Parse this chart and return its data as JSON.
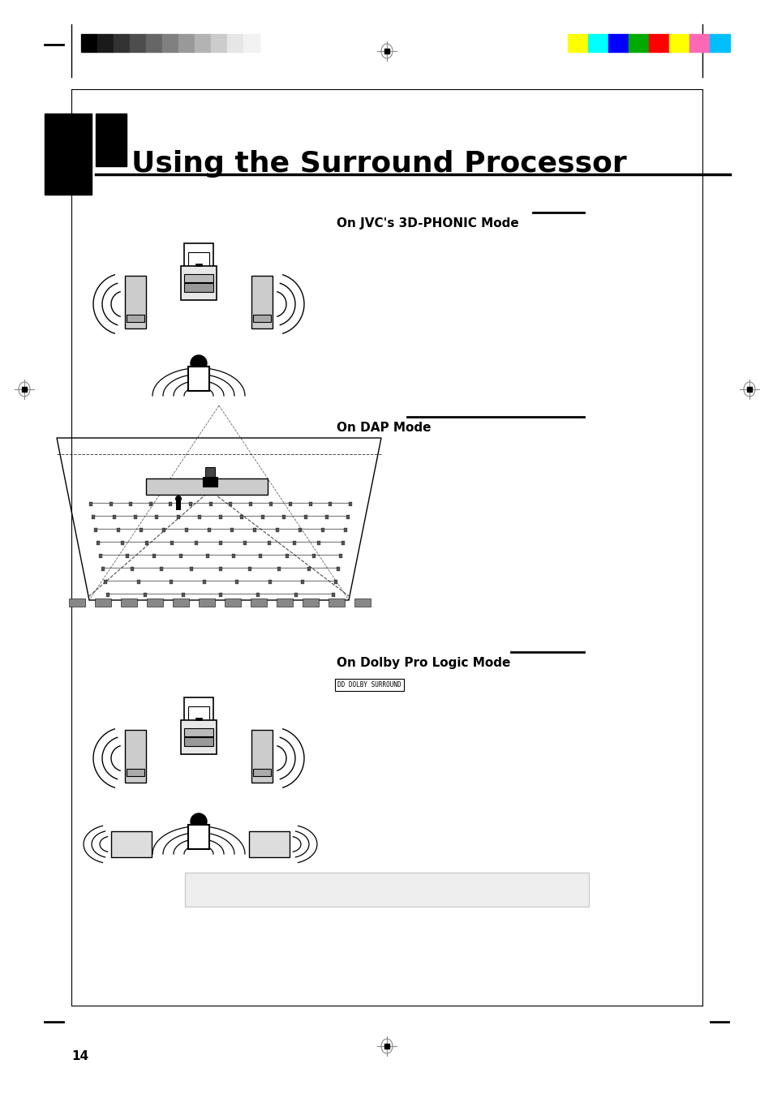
{
  "title": "Using the Surround Processor",
  "page_number": "14",
  "background_color": "#ffffff",
  "text_color": "#000000",
  "section1_label": "On JVC's 3D-PHONIC Mode",
  "section2_label": "On DAP Mode",
  "section3_label": "On Dolby Pro Logic Mode",
  "grayscale_colors": [
    "#000000",
    "#1a1a1a",
    "#333333",
    "#4d4d4d",
    "#666666",
    "#808080",
    "#999999",
    "#b3b3b3",
    "#cccccc",
    "#e6e6e6",
    "#f2f2f2"
  ],
  "color_bar_colors": [
    "#ffff00",
    "#00ffff",
    "#0000ff",
    "#00aa00",
    "#ff0000",
    "#ffff00",
    "#ff69b4",
    "#00bfff"
  ],
  "title_fontsize": 26,
  "label_fontsize": 11,
  "page_num_fontsize": 11
}
